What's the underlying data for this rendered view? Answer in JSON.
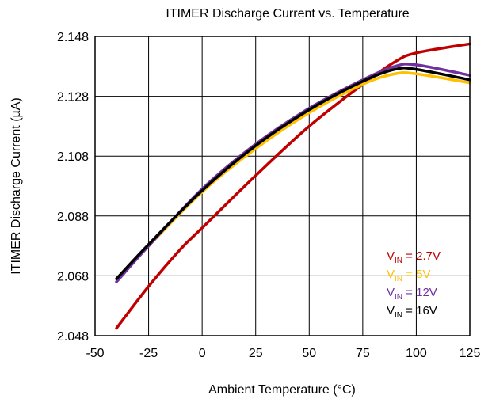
{
  "chart_data": {
    "type": "line",
    "title": "ITIMER Discharge Current vs. Temperature",
    "xlabel": "Ambient Temperature (°C)",
    "ylabel": "ITIMER Discharge Current (µA)",
    "xlim": [
      -50,
      125
    ],
    "ylim": [
      2.048,
      2.148
    ],
    "xticks": [
      "-50",
      "-25",
      "0",
      "25",
      "50",
      "75",
      "100",
      "125"
    ],
    "yticks": [
      "2.048",
      "2.068",
      "2.088",
      "2.108",
      "2.128",
      "2.148"
    ],
    "grid": true,
    "legend_position": "bottom-right",
    "series": [
      {
        "name_main": "V",
        "name_sub": "IN",
        "name_rest": " = 2.7V",
        "color": "#c00000",
        "x": [
          -40,
          -25,
          -10,
          0,
          25,
          50,
          75,
          90,
          100,
          125
        ],
        "y": [
          2.0505,
          2.0645,
          2.077,
          2.084,
          2.1015,
          2.118,
          2.132,
          2.1395,
          2.1425,
          2.1455
        ]
      },
      {
        "name_main": "V",
        "name_sub": "IN",
        "name_rest": " = 5V",
        "color": "#ffc000",
        "x": [
          -40,
          -25,
          0,
          25,
          50,
          75,
          90,
          100,
          125
        ],
        "y": [
          2.067,
          2.078,
          2.096,
          2.1105,
          2.1225,
          2.132,
          2.1355,
          2.1355,
          2.1325
        ]
      },
      {
        "name_main": "V",
        "name_sub": "IN",
        "name_rest": " = 12V",
        "color": "#7030a0",
        "x": [
          -40,
          -25,
          0,
          25,
          50,
          75,
          90,
          100,
          125
        ],
        "y": [
          2.066,
          2.078,
          2.097,
          2.112,
          2.124,
          2.1335,
          2.138,
          2.1385,
          2.135
        ]
      },
      {
        "name_main": "V",
        "name_sub": "IN",
        "name_rest": " = 16V",
        "color": "#000000",
        "x": [
          -40,
          -25,
          0,
          25,
          50,
          75,
          90,
          100,
          125
        ],
        "y": [
          2.067,
          2.0785,
          2.0965,
          2.1115,
          2.1235,
          2.133,
          2.137,
          2.137,
          2.1335
        ]
      }
    ]
  }
}
